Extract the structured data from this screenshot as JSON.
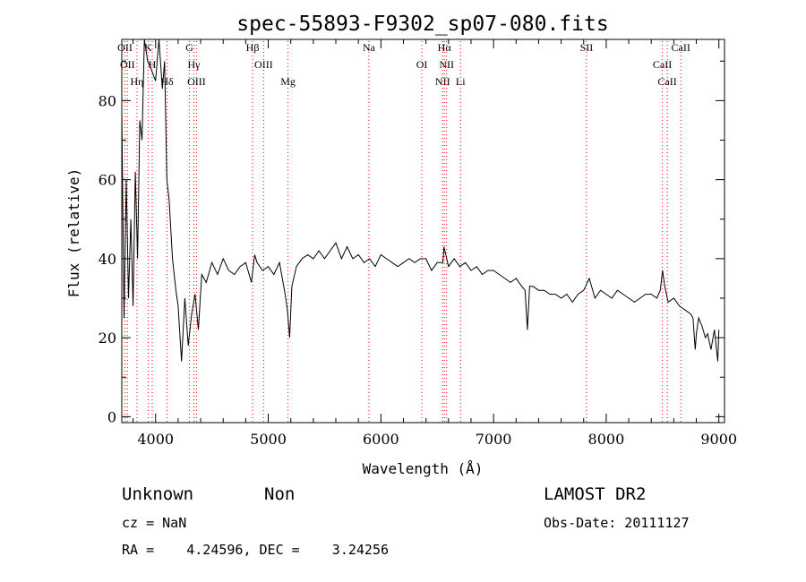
{
  "chart_data": {
    "type": "line",
    "title": "spec-55893-F9302_sp07-080.fits",
    "xlabel": "Wavelength (Å)",
    "ylabel": "Flux (relative)",
    "xlim": [
      3700,
      9050
    ],
    "ylim": [
      -1.5,
      95.5
    ],
    "xticks": [
      4000,
      5000,
      6000,
      7000,
      8000,
      9000
    ],
    "yticks": [
      0,
      20,
      40,
      60,
      80
    ],
    "grid": false,
    "legend": "none",
    "series": [
      {
        "x": [
          3700,
          3720,
          3740,
          3760,
          3780,
          3800,
          3820,
          3840,
          3860,
          3880,
          3900,
          3930,
          3960,
          4000,
          4030,
          4060,
          4080,
          4100,
          4120,
          4150,
          4180,
          4200,
          4230,
          4260,
          4290,
          4320,
          4350,
          4380,
          4410,
          4450,
          4500,
          4550,
          4600,
          4650,
          4700,
          4750,
          4800,
          4850,
          4880,
          4900,
          4950,
          5000,
          5050,
          5100,
          5150,
          5170,
          5190,
          5210,
          5250,
          5300,
          5350,
          5400,
          5450,
          5500,
          5550,
          5600,
          5650,
          5700,
          5750,
          5800,
          5850,
          5900,
          5950,
          6000,
          6050,
          6100,
          6150,
          6200,
          6250,
          6300,
          6350,
          6400,
          6450,
          6500,
          6550,
          6560,
          6600,
          6650,
          6700,
          6750,
          6800,
          6850,
          6900,
          6950,
          7000,
          7050,
          7100,
          7150,
          7200,
          7250,
          7280,
          7300,
          7320,
          7350,
          7400,
          7450,
          7500,
          7550,
          7600,
          7650,
          7700,
          7750,
          7800,
          7850,
          7900,
          7950,
          8000,
          8050,
          8100,
          8150,
          8200,
          8250,
          8300,
          8350,
          8400,
          8450,
          8480,
          8500,
          8520,
          8550,
          8600,
          8650,
          8700,
          8750,
          8770,
          8790,
          8800,
          8820,
          8850,
          8880,
          8900,
          8930,
          8960,
          8990,
          9000
        ],
        "y": [
          77,
          25,
          60,
          30,
          50,
          28,
          62,
          40,
          75,
          70,
          97,
          90,
          88,
          85,
          96,
          83,
          90,
          60,
          55,
          40,
          32,
          28,
          14,
          30,
          18,
          26,
          31,
          22,
          36,
          34,
          39,
          36,
          40,
          37,
          36,
          38,
          39,
          34,
          41,
          39,
          37,
          38,
          36,
          39,
          31,
          27,
          20,
          33,
          38,
          40,
          41,
          40,
          42,
          40,
          42,
          44,
          40,
          43,
          40,
          41,
          39,
          40,
          38,
          41,
          40,
          39,
          38,
          39,
          40,
          39,
          40,
          40,
          37,
          39,
          39,
          43,
          38,
          40,
          38,
          39,
          37,
          38,
          36,
          37,
          37,
          36,
          35,
          34,
          35,
          33,
          32,
          22,
          33,
          33,
          32,
          32,
          31,
          31,
          30,
          31,
          29,
          31,
          32,
          35,
          30,
          32,
          31,
          30,
          32,
          31,
          30,
          29,
          30,
          31,
          31,
          30,
          32,
          37,
          33,
          29,
          30,
          28,
          27,
          26,
          25,
          17,
          21,
          25,
          23,
          20,
          21,
          17,
          22,
          14,
          22
        ]
      }
    ],
    "annotations": {
      "lines": [
        {
          "wavelength": 3728,
          "labels": [
            "OII"
          ]
        },
        {
          "wavelength": 3750,
          "labels": [
            "OII"
          ]
        },
        {
          "wavelength": 3835,
          "labels": [
            "Hη"
          ]
        },
        {
          "wavelength": 3934,
          "labels": [
            "K"
          ]
        },
        {
          "wavelength": 3970,
          "labels": [
            "H"
          ]
        },
        {
          "wavelength": 4102,
          "labels": [
            "Hδ"
          ]
        },
        {
          "wavelength": 4300,
          "labels": [
            "G"
          ]
        },
        {
          "wavelength": 4340,
          "labels": [
            "Hγ"
          ]
        },
        {
          "wavelength": 4363,
          "labels": [
            "OIII"
          ]
        },
        {
          "wavelength": 4861,
          "labels": [
            "Hβ"
          ]
        },
        {
          "wavelength": 4959,
          "labels": [
            "OIII"
          ]
        },
        {
          "wavelength": 5175,
          "labels": [
            "Mg"
          ]
        },
        {
          "wavelength": 5893,
          "labels": [
            "Na"
          ]
        },
        {
          "wavelength": 6364,
          "labels": [
            "OI"
          ]
        },
        {
          "wavelength": 6548,
          "labels": [
            "NII"
          ]
        },
        {
          "wavelength": 6563,
          "labels": [
            "Hα"
          ]
        },
        {
          "wavelength": 6583,
          "labels": [
            "NII"
          ]
        },
        {
          "wavelength": 6707,
          "labels": [
            "Li"
          ]
        },
        {
          "wavelength": 7825,
          "labels": [
            "SII"
          ]
        },
        {
          "wavelength": 8498,
          "labels": [
            "CaII"
          ]
        },
        {
          "wavelength": 8542,
          "labels": [
            "CaII"
          ]
        },
        {
          "wavelength": 8662,
          "labels": [
            "CaII"
          ]
        }
      ],
      "line_color": "#ff0000"
    },
    "footer": {
      "object_class": "Unknown",
      "subclass": "Non",
      "survey": "LAMOST DR2",
      "cz": "cz = NaN",
      "obs_date": "Obs-Date: 20111127",
      "coords": "RA =    4.24596, DEC =    3.24256"
    }
  }
}
